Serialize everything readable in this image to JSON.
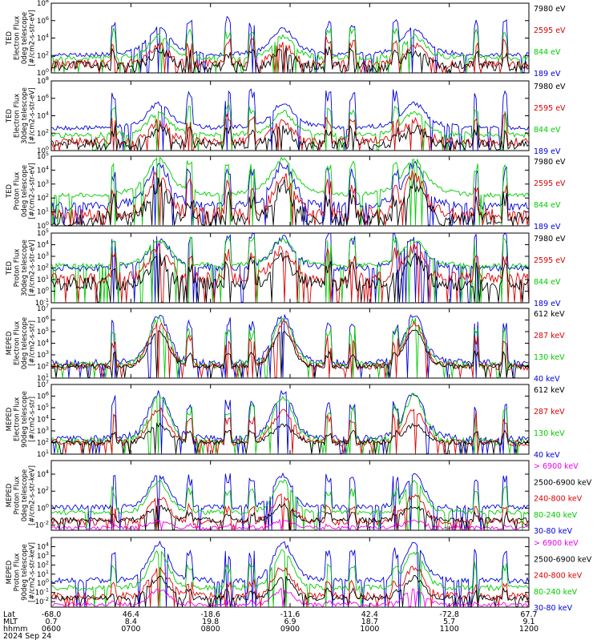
{
  "chart_data": {
    "type": "line",
    "x_rows": [
      {
        "label": "Lat",
        "values": [
          "-68.0",
          "46.4",
          "-18.6",
          "-11.6",
          "42.4",
          "-72.8",
          "67.7"
        ]
      },
      {
        "label": "MLT",
        "values": [
          "0.7",
          "8.4",
          "19.8",
          "6.9",
          "18.7",
          "5.7",
          "9.1"
        ]
      },
      {
        "label": "hhmm",
        "values": [
          "0600",
          "0700",
          "0800",
          "0900",
          "1000",
          "1100",
          "1200"
        ]
      }
    ],
    "date": "2024 Sep 24",
    "panels": [
      {
        "ylabel": [
          "TED",
          "Electron Flux",
          "0deg telescope",
          "[#/cm2-s-str-eV]"
        ],
        "yexp": [
          0,
          2,
          4,
          6,
          8
        ],
        "ymin": 0,
        "ymax": 8,
        "legend": [
          {
            "text": "7980 eV",
            "color": "#000000"
          },
          {
            "text": "2595 eV",
            "color": "#dd0000"
          },
          {
            "text": "844 eV",
            "color": "#00cc00"
          },
          {
            "text": "189 eV",
            "color": "#0000dd"
          }
        ],
        "series": [
          {
            "color": "#0000dd",
            "base": 2.1,
            "wing": 0.8,
            "belt": 2.2,
            "spikes": 4.3,
            "noise": 0.25
          },
          {
            "color": "#00cc00",
            "base": 1.7,
            "wing": 0.5,
            "belt": 2.0,
            "spikes": 3.4,
            "noise": 0.3
          },
          {
            "color": "#dd0000",
            "base": 1.0,
            "wing": 0.2,
            "belt": 1.9,
            "spikes": 2.8,
            "noise": 0.5
          },
          {
            "color": "#000000",
            "base": 0.8,
            "wing": 0.0,
            "belt": 1.6,
            "spikes": 1.8,
            "noise": 0.6
          }
        ]
      },
      {
        "ylabel": [
          "TED",
          "Electron Flux",
          "30deg telescope",
          "[#/cm2-s-str-eV]"
        ],
        "yexp": [
          0,
          2,
          4,
          6,
          8
        ],
        "ymin": 0,
        "ymax": 8,
        "legend": [
          {
            "text": "7980 eV",
            "color": "#000000"
          },
          {
            "text": "2595 eV",
            "color": "#dd0000"
          },
          {
            "text": "844 eV",
            "color": "#00cc00"
          },
          {
            "text": "189 eV",
            "color": "#0000dd"
          }
        ],
        "series": [
          {
            "color": "#0000dd",
            "base": 2.6,
            "wing": 0.8,
            "belt": 2.0,
            "spikes": 4.3,
            "noise": 0.25
          },
          {
            "color": "#00cc00",
            "base": 1.8,
            "wing": 0.5,
            "belt": 2.1,
            "spikes": 3.4,
            "noise": 0.3
          },
          {
            "color": "#dd0000",
            "base": 1.0,
            "wing": 0.3,
            "belt": 2.0,
            "spikes": 2.8,
            "noise": 0.5
          },
          {
            "color": "#000000",
            "base": 0.7,
            "wing": 0.0,
            "belt": 1.8,
            "spikes": 1.8,
            "noise": 0.6
          }
        ]
      },
      {
        "ylabel": [
          "TED",
          "Proton Flux",
          "0deg telescope",
          "[#/cm2-s-str-eV]"
        ],
        "yexp": [
          0,
          1,
          2,
          3,
          4,
          5
        ],
        "ymin": 0,
        "ymax": 5,
        "legend": [
          {
            "text": "7980 eV",
            "color": "#000000"
          },
          {
            "text": "2595 eV",
            "color": "#dd0000"
          },
          {
            "text": "844 eV",
            "color": "#00cc00"
          },
          {
            "text": "189 eV",
            "color": "#0000dd"
          }
        ],
        "series": [
          {
            "color": "#0000dd",
            "base": 1.4,
            "wing": 0.6,
            "belt": 2.4,
            "spikes": 2.8,
            "noise": 0.3
          },
          {
            "color": "#00cc00",
            "base": 2.2,
            "wing": 0.8,
            "belt": 1.8,
            "spikes": 2.4,
            "noise": 0.15
          },
          {
            "color": "#dd0000",
            "base": 0.8,
            "wing": 0.3,
            "belt": 2.5,
            "spikes": 2.2,
            "noise": 0.5
          },
          {
            "color": "#000000",
            "base": 0.5,
            "wing": 0.1,
            "belt": 2.3,
            "spikes": 1.6,
            "noise": 0.6
          }
        ]
      },
      {
        "ylabel": [
          "TED",
          "Proton Flux",
          "30deg telescope",
          "[#/cm2-s-str-eV]"
        ],
        "yexp": [
          -1,
          0,
          1,
          2,
          3,
          4,
          5
        ],
        "ymin": -1,
        "ymax": 5,
        "legend": [
          {
            "text": "7980 eV",
            "color": "#000000"
          },
          {
            "text": "2595 eV",
            "color": "#dd0000"
          },
          {
            "text": "844 eV",
            "color": "#00cc00"
          },
          {
            "text": "189 eV",
            "color": "#0000dd"
          }
        ],
        "series": [
          {
            "color": "#0000dd",
            "base": 2.0,
            "wing": 0.5,
            "belt": 2.1,
            "spikes": 3.0,
            "noise": 0.3
          },
          {
            "color": "#00cc00",
            "base": 2.2,
            "wing": 0.5,
            "belt": 1.7,
            "spikes": 2.6,
            "noise": 0.2
          },
          {
            "color": "#dd0000",
            "base": 1.1,
            "wing": 0.3,
            "belt": 2.3,
            "spikes": 2.3,
            "noise": 0.5
          },
          {
            "color": "#000000",
            "base": 0.6,
            "wing": 0.1,
            "belt": 2.1,
            "spikes": 1.8,
            "noise": 0.6
          }
        ]
      },
      {
        "ylabel": [
          "MEPED",
          "Electron Flux",
          "0deg telescope",
          "[#/cm2-s-str]"
        ],
        "yexp": [
          1,
          2,
          3,
          4,
          5,
          6,
          7
        ],
        "ymin": 1,
        "ymax": 7,
        "legend": [
          {
            "text": "612 keV",
            "color": "#000000"
          },
          {
            "text": "287 keV",
            "color": "#dd0000"
          },
          {
            "text": "130 keV",
            "color": "#00cc00"
          },
          {
            "text": "40 keV",
            "color": "#0000dd"
          }
        ],
        "series": [
          {
            "color": "#0000dd",
            "base": 2.3,
            "wing": 0.4,
            "belt": 3.7,
            "spikes": 3.8,
            "noise": 0.3
          },
          {
            "color": "#00cc00",
            "base": 2.1,
            "wing": 0.3,
            "belt": 3.6,
            "spikes": 3.2,
            "noise": 0.3
          },
          {
            "color": "#dd0000",
            "base": 2.0,
            "wing": 0.2,
            "belt": 3.5,
            "spikes": 2.6,
            "noise": 0.3
          },
          {
            "color": "#000000",
            "base": 2.0,
            "wing": 0.1,
            "belt": 3.0,
            "spikes": 1.2,
            "noise": 0.2
          }
        ]
      },
      {
        "ylabel": [
          "MEPED",
          "Electron Flux",
          "90deg telescope",
          "[#/cm2-s-str]"
        ],
        "yexp": [
          1,
          2,
          3,
          4,
          5,
          6,
          7
        ],
        "ymin": 1,
        "ymax": 7,
        "legend": [
          {
            "text": "612 keV",
            "color": "#000000"
          },
          {
            "text": "287 keV",
            "color": "#dd0000"
          },
          {
            "text": "130 keV",
            "color": "#00cc00"
          },
          {
            "text": "40 keV",
            "color": "#0000dd"
          }
        ],
        "series": [
          {
            "color": "#0000dd",
            "base": 2.3,
            "wing": 0.5,
            "belt": 3.5,
            "spikes": 3.5,
            "noise": 0.3
          },
          {
            "color": "#00cc00",
            "base": 2.1,
            "wing": 0.4,
            "belt": 3.5,
            "spikes": 3.0,
            "noise": 0.3
          },
          {
            "color": "#dd0000",
            "base": 2.0,
            "wing": 0.2,
            "belt": 2.6,
            "spikes": 2.4,
            "noise": 0.3
          },
          {
            "color": "#000000",
            "base": 2.0,
            "wing": 0.1,
            "belt": 1.4,
            "spikes": 1.0,
            "noise": 0.2
          }
        ]
      },
      {
        "ylabel": [
          "MEPED",
          "Proton Flux",
          "0deg telescope",
          "[#/cm2-s-str-keV]"
        ],
        "yexp": [
          -2,
          0,
          2,
          4
        ],
        "ymin": -2.6,
        "ymax": 5.6,
        "legend": [
          {
            "text": "> 6900 keV",
            "color": "#ee00ee"
          },
          {
            "text": "2500-6900 keV",
            "color": "#000000"
          },
          {
            "text": "240-800 keV",
            "color": "#dd0000"
          },
          {
            "text": "80-240 keV",
            "color": "#00cc00"
          },
          {
            "text": "30-80 keV",
            "color": "#0000dd"
          }
        ],
        "series": [
          {
            "color": "#0000dd",
            "base": 0.1,
            "wing": 0.2,
            "belt": 3.5,
            "spikes": 3.8,
            "noise": 0.3
          },
          {
            "color": "#00cc00",
            "base": -0.5,
            "wing": 0.2,
            "belt": 3.5,
            "spikes": 2.8,
            "noise": 0.3
          },
          {
            "color": "#dd0000",
            "base": -1.6,
            "wing": 0.1,
            "belt": 2.9,
            "spikes": 1.8,
            "noise": 0.4
          },
          {
            "color": "#000000",
            "base": -1.4,
            "wing": 0.0,
            "belt": 1.7,
            "spikes": 0.8,
            "noise": 0.3
          },
          {
            "color": "#ee00ee",
            "base": -2.3,
            "wing": 0.0,
            "belt": 0.8,
            "spikes": 0.3,
            "noise": 0.2
          }
        ]
      },
      {
        "ylabel": [
          "MEPED",
          "Proton Flux",
          "90deg telescope",
          "[#/cm2-s-str-keV]"
        ],
        "yexp": [
          -2,
          -1,
          0,
          1,
          2,
          3,
          4
        ],
        "ymin": -2.6,
        "ymax": 5,
        "legend": [
          {
            "text": "> 6900 keV",
            "color": "#ee00ee"
          },
          {
            "text": "2500-6900 keV",
            "color": "#000000"
          },
          {
            "text": "240-800 keV",
            "color": "#dd0000"
          },
          {
            "text": "80-240 keV",
            "color": "#00cc00"
          },
          {
            "text": "30-80 keV",
            "color": "#0000dd"
          }
        ],
        "series": [
          {
            "color": "#0000dd",
            "base": 0.3,
            "wing": 0.4,
            "belt": 3.6,
            "spikes": 3.4,
            "noise": 0.3
          },
          {
            "color": "#00cc00",
            "base": -0.5,
            "wing": 0.3,
            "belt": 3.6,
            "spikes": 2.6,
            "noise": 0.3
          },
          {
            "color": "#dd0000",
            "base": -1.4,
            "wing": 0.1,
            "belt": 3.0,
            "spikes": 1.6,
            "noise": 0.4
          },
          {
            "color": "#000000",
            "base": -1.6,
            "wing": 0.0,
            "belt": 2.2,
            "spikes": 0.8,
            "noise": 0.3
          },
          {
            "color": "#ee00ee",
            "base": -2.3,
            "wing": 0.0,
            "belt": 1.6,
            "spikes": 0.3,
            "noise": 0.2
          }
        ]
      }
    ]
  }
}
